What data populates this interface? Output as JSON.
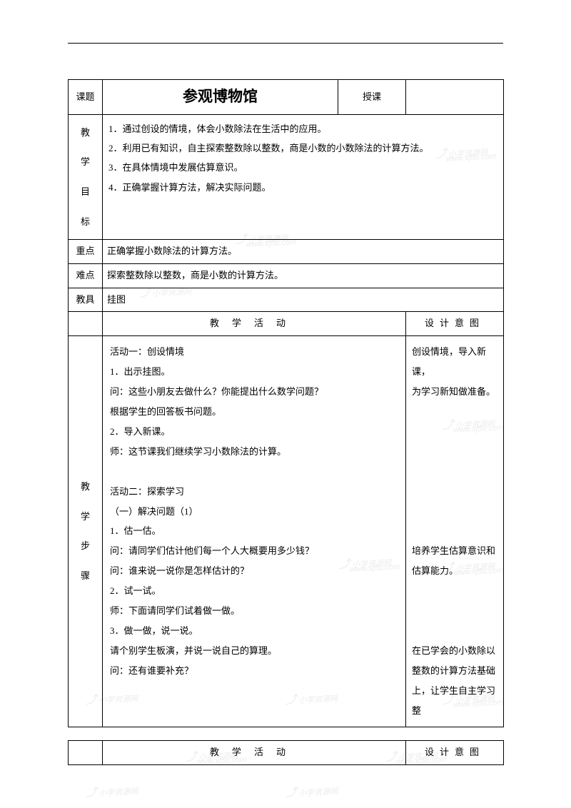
{
  "header": {
    "topic_label": "课题",
    "title": "参观博物馆",
    "teach_label": "授课"
  },
  "goals": {
    "label": "教学目标",
    "items": [
      "1．通过创设的情境，体会小数除法在生活中的应用。",
      "2．利用已有知识，自主探索整数除以整数，商是小数的小数除法的计算方法。",
      "3．在具体情境中发展估算意识。",
      "4．正确掌握计算方法，解决实际问题。"
    ]
  },
  "keypoint": {
    "label": "重点",
    "text": "正确掌握小数除法的计算方法。"
  },
  "difficulty": {
    "label": "难点",
    "text": "探索整数除以整数，商是小数的计算方法。"
  },
  "tools": {
    "label": "教具",
    "text": "挂图"
  },
  "columns": {
    "activity_header": "教学活动",
    "design_header": "设计意图"
  },
  "steps": {
    "label": "教学步骤",
    "activity_lines": [
      "活动一：创设情境",
      "1．出示挂图。",
      "问：这些小朋友去做什么？你能提出什么数学问题？",
      "根据学生的回答板书问题。",
      "2．导入新课。",
      "师：这节课我们继续学习小数除法的计算。",
      "",
      "活动二：探索学习",
      "（一）解决问题（1）",
      "1．估一估。",
      "问：请同学们估计他们每一个人大概要用多少钱？",
      "问：谁来说一说你是怎样估计的？",
      "2．试一试。",
      "师：下面请同学们试着做一做。",
      "3．做一做，说一说。",
      "请个别学生板演，并说一说自己的算理。",
      "问：还有谁要补充？"
    ],
    "design_lines": [
      "创设情境，导入新课，",
      "为学习新知做准备。",
      "",
      "",
      "",
      "",
      "",
      "",
      "",
      "培养学生估算意识和",
      "估算能力。",
      "",
      "",
      "",
      "在已学会的小数除以",
      "整数的计算方法基础",
      "上，让学生自主学习",
      "整"
    ]
  },
  "footer": {
    "activity_header": "教学活动",
    "design_header": "设计意图"
  },
  "watermarks": {
    "text1": "小学资源网",
    "text2": "www.xj5u.com"
  },
  "colors": {
    "border": "#000000",
    "background": "#ffffff",
    "text": "#000000",
    "watermark": "#888888"
  }
}
